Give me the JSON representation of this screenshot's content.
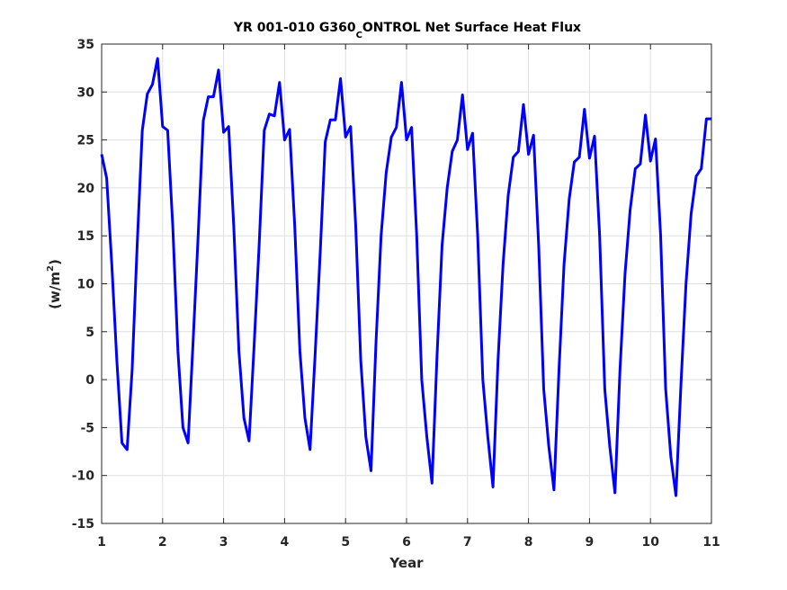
{
  "chart_data": {
    "type": "line",
    "title": "YR 001-010 G360",
    "title_sub": "C",
    "title_rest": "ONTROL Net Surface Heat Flux",
    "xlabel": "Year",
    "ylabel_main": "(w/m",
    "ylabel_sup": "2",
    "ylabel_end": ")",
    "xlim": [
      1,
      11
    ],
    "ylim": [
      -15,
      35
    ],
    "xticks": [
      "1",
      "2",
      "3",
      "4",
      "5",
      "6",
      "7",
      "8",
      "9",
      "10",
      "11"
    ],
    "yticks": [
      "-15",
      "-10",
      "-5",
      "0",
      "5",
      "10",
      "15",
      "20",
      "25",
      "30",
      "35"
    ],
    "grid": true,
    "line_color": "#0000ff",
    "series": [
      {
        "x": [
          1.0,
          1.083,
          1.167,
          1.25,
          1.333,
          1.417,
          1.5,
          1.583,
          1.667,
          1.75,
          1.833,
          1.917,
          2.0,
          2.083,
          2.167,
          2.25,
          2.333,
          2.417,
          2.5,
          2.583,
          2.667,
          2.75,
          2.833,
          2.917,
          3.0,
          3.083,
          3.167,
          3.25,
          3.333,
          3.417,
          3.5,
          3.583,
          3.667,
          3.75,
          3.833,
          3.917,
          4.0,
          4.083,
          4.167,
          4.25,
          4.333,
          4.417,
          4.5,
          4.583,
          4.667,
          4.75,
          4.833,
          4.917,
          5.0,
          5.083,
          5.167,
          5.25,
          5.333,
          5.417,
          5.5,
          5.583,
          5.667,
          5.75,
          5.833,
          5.917,
          6.0,
          6.083,
          6.167,
          6.25,
          6.333,
          6.417,
          6.5,
          6.583,
          6.667,
          6.75,
          6.833,
          6.917,
          7.0,
          7.083,
          7.167,
          7.25,
          7.333,
          7.417,
          7.5,
          7.583,
          7.667,
          7.75,
          7.833,
          7.917,
          8.0,
          8.083,
          8.167,
          8.25,
          8.333,
          8.417,
          8.5,
          8.583,
          8.667,
          8.75,
          8.833,
          8.917,
          9.0,
          9.083,
          9.167,
          9.25,
          9.333,
          9.417,
          9.5,
          9.583,
          9.667,
          9.75,
          9.833,
          9.917,
          10.0,
          10.083,
          10.167,
          10.25,
          10.333,
          10.417,
          10.5,
          10.583,
          10.667,
          10.75,
          10.833,
          10.917,
          11.0
        ],
        "y": [
          23.5,
          21.0,
          12.0,
          2.0,
          -6.6,
          -7.3,
          1.0,
          14.0,
          26.0,
          29.8,
          30.8,
          33.5,
          26.4,
          26.0,
          16.0,
          3.0,
          -5.0,
          -6.6,
          4.0,
          15.0,
          27.0,
          29.5,
          29.5,
          32.3,
          25.8,
          26.4,
          16.0,
          3.0,
          -4.0,
          -6.4,
          3.5,
          14.0,
          26.0,
          27.7,
          27.5,
          31.0,
          25.0,
          26.1,
          16.0,
          3.0,
          -4.0,
          -7.3,
          2.5,
          13.0,
          24.8,
          27.1,
          27.1,
          31.4,
          25.3,
          26.4,
          16.0,
          2.0,
          -6.0,
          -9.5,
          4.0,
          15.0,
          21.6,
          25.3,
          26.3,
          31.0,
          25.0,
          26.3,
          15.0,
          0.0,
          -6.0,
          -10.8,
          2.5,
          14.0,
          20.0,
          23.8,
          25.0,
          29.7,
          24.0,
          25.7,
          15.0,
          0.0,
          -6.0,
          -11.2,
          2.0,
          12.0,
          19.2,
          23.2,
          23.8,
          28.7,
          23.5,
          25.5,
          14.0,
          -1.0,
          -7.0,
          -11.5,
          1.0,
          12.0,
          18.8,
          22.7,
          23.2,
          28.2,
          23.1,
          25.4,
          15.0,
          -1.0,
          -7.0,
          -11.8,
          1.0,
          11.0,
          17.7,
          22.0,
          22.5,
          27.6,
          22.8,
          25.1,
          15.0,
          -1.0,
          -8.0,
          -12.1,
          -0.5,
          10.0,
          17.3,
          21.2,
          22.0,
          27.2,
          27.2
        ]
      }
    ]
  }
}
